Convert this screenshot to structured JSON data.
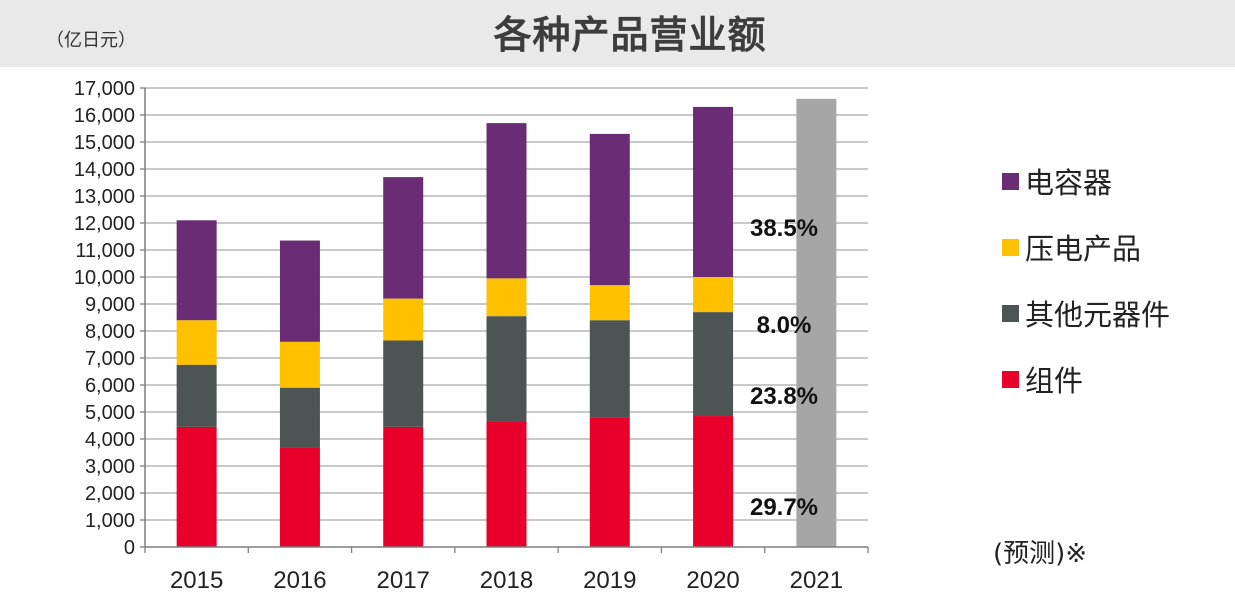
{
  "header": {
    "title": "各种产品营业额",
    "unit": "（亿日元）"
  },
  "chart_data": {
    "type": "bar",
    "stacked": true,
    "categories": [
      "2015",
      "2016",
      "2017",
      "2018",
      "2019",
      "2020",
      "2021"
    ],
    "ylim": [
      0,
      17000
    ],
    "yticks": [
      "0",
      "1,000",
      "2,000",
      "3,000",
      "4,000",
      "5,000",
      "6,000",
      "7,000",
      "8,000",
      "9,000",
      "10,000",
      "11,000",
      "12,000",
      "13,000",
      "14,000",
      "15,000",
      "16,000",
      "17,000"
    ],
    "grid": true,
    "legend_position": "right",
    "series": [
      {
        "name": "组件",
        "color": "#e8002a",
        "values": [
          4450,
          3700,
          4450,
          4650,
          4800,
          4850,
          null
        ]
      },
      {
        "name": "其他元器件",
        "color": "#4d5454",
        "values": [
          2300,
          2200,
          3200,
          3900,
          3600,
          3850,
          null
        ]
      },
      {
        "name": "压电产品",
        "color": "#ffc000",
        "values": [
          1650,
          1700,
          1550,
          1400,
          1300,
          1300,
          null
        ]
      },
      {
        "name": "电容器",
        "color": "#6a2c75",
        "values": [
          3700,
          3750,
          4500,
          5750,
          5600,
          6300,
          null
        ]
      }
    ],
    "forecast": {
      "category": "2021",
      "total": 16600,
      "color": "#a6a6a6"
    },
    "annotations": [
      "38.5%",
      "8.0%",
      "23.8%",
      "29.7%"
    ],
    "forecast_note": "(预测)※"
  },
  "legend": {
    "items": [
      {
        "label": "电容器",
        "color": "#6a2c75"
      },
      {
        "label": "压电产品",
        "color": "#ffc000"
      },
      {
        "label": "其他元器件",
        "color": "#4d5454"
      },
      {
        "label": "组件",
        "color": "#e8002a"
      }
    ]
  }
}
